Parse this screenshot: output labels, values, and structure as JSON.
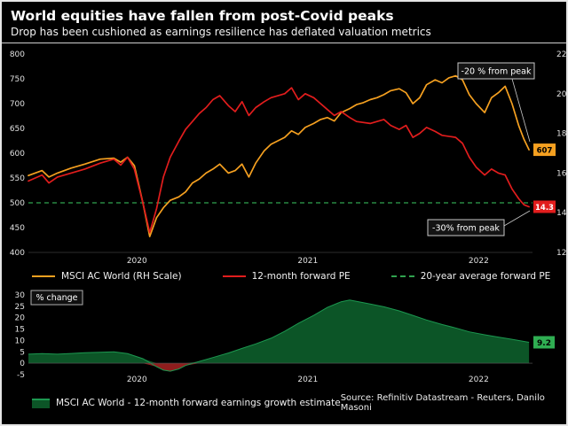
{
  "header": {
    "title": "World equities have fallen from post-Covid peaks",
    "subtitle": "Drop has been cushioned as earnings resilience has deflated valuation metrics"
  },
  "footer": {
    "source": "Source: Refinitiv Datastream - Reuters, Danilo Masoni"
  },
  "colors": {
    "background": "#000000",
    "msci_orange": "#f5a020",
    "pe_red": "#e11d1d",
    "avg_green": "#30a24f",
    "area_green": "#0c5527",
    "area_green_edge": "#1c9850",
    "negative_red": "#8f1d1d",
    "tick_text": "#e0e0e0"
  },
  "chart_data": [
    {
      "type": "line",
      "title": "World equities have fallen from post-Covid peaks",
      "x_range": [
        2019.5,
        2022.45
      ],
      "x_ticks": [
        {
          "value": 2020,
          "label": "2020"
        },
        {
          "value": 2021,
          "label": "2021"
        },
        {
          "value": 2022,
          "label": "2022"
        }
      ],
      "left_axis": {
        "range": [
          400,
          800
        ],
        "ticks": [
          800,
          750,
          700,
          650,
          600,
          550,
          500,
          450,
          400
        ]
      },
      "right_axis": {
        "range": [
          12,
          22
        ],
        "ticks": [
          22,
          20,
          18,
          16,
          14,
          12
        ]
      },
      "series": [
        {
          "name": "MSCI AC World (RH Scale)",
          "axis": "left",
          "color": "#f5a020",
          "style": "solid",
          "points": [
            [
              2019.5,
              555
            ],
            [
              2019.58,
              565
            ],
            [
              2019.62,
              552
            ],
            [
              2019.67,
              560
            ],
            [
              2019.75,
              570
            ],
            [
              2019.83,
              578
            ],
            [
              2019.92,
              588
            ],
            [
              2020.0,
              590
            ],
            [
              2020.04,
              582
            ],
            [
              2020.08,
              592
            ],
            [
              2020.12,
              575
            ],
            [
              2020.17,
              500
            ],
            [
              2020.21,
              432
            ],
            [
              2020.25,
              470
            ],
            [
              2020.29,
              490
            ],
            [
              2020.33,
              505
            ],
            [
              2020.38,
              512
            ],
            [
              2020.42,
              522
            ],
            [
              2020.46,
              540
            ],
            [
              2020.5,
              548
            ],
            [
              2020.54,
              560
            ],
            [
              2020.58,
              568
            ],
            [
              2020.62,
              578
            ],
            [
              2020.67,
              560
            ],
            [
              2020.71,
              565
            ],
            [
              2020.75,
              578
            ],
            [
              2020.79,
              552
            ],
            [
              2020.83,
              580
            ],
            [
              2020.88,
              605
            ],
            [
              2020.92,
              618
            ],
            [
              2020.96,
              625
            ],
            [
              2021.0,
              632
            ],
            [
              2021.04,
              645
            ],
            [
              2021.08,
              638
            ],
            [
              2021.12,
              652
            ],
            [
              2021.17,
              660
            ],
            [
              2021.21,
              668
            ],
            [
              2021.25,
              672
            ],
            [
              2021.29,
              665
            ],
            [
              2021.33,
              682
            ],
            [
              2021.38,
              690
            ],
            [
              2021.42,
              698
            ],
            [
              2021.46,
              702
            ],
            [
              2021.5,
              708
            ],
            [
              2021.54,
              712
            ],
            [
              2021.58,
              718
            ],
            [
              2021.62,
              726
            ],
            [
              2021.67,
              730
            ],
            [
              2021.71,
              722
            ],
            [
              2021.75,
              700
            ],
            [
              2021.79,
              712
            ],
            [
              2021.83,
              738
            ],
            [
              2021.88,
              748
            ],
            [
              2021.92,
              742
            ],
            [
              2021.96,
              752
            ],
            [
              2022.0,
              756
            ],
            [
              2022.04,
              748
            ],
            [
              2022.08,
              718
            ],
            [
              2022.12,
              700
            ],
            [
              2022.17,
              682
            ],
            [
              2022.21,
              712
            ],
            [
              2022.25,
              722
            ],
            [
              2022.29,
              735
            ],
            [
              2022.33,
              700
            ],
            [
              2022.37,
              655
            ],
            [
              2022.4,
              628
            ],
            [
              2022.43,
              607
            ]
          ]
        },
        {
          "name": "12-month forward PE",
          "axis": "right",
          "color": "#e11d1d",
          "style": "solid",
          "points": [
            [
              2019.5,
              15.6
            ],
            [
              2019.58,
              15.9
            ],
            [
              2019.62,
              15.5
            ],
            [
              2019.67,
              15.8
            ],
            [
              2019.75,
              16.0
            ],
            [
              2019.83,
              16.2
            ],
            [
              2019.92,
              16.5
            ],
            [
              2020.0,
              16.7
            ],
            [
              2020.04,
              16.4
            ],
            [
              2020.08,
              16.8
            ],
            [
              2020.12,
              16.2
            ],
            [
              2020.17,
              14.5
            ],
            [
              2020.21,
              13.0
            ],
            [
              2020.25,
              14.2
            ],
            [
              2020.29,
              15.8
            ],
            [
              2020.33,
              16.8
            ],
            [
              2020.38,
              17.6
            ],
            [
              2020.42,
              18.2
            ],
            [
              2020.46,
              18.6
            ],
            [
              2020.5,
              19.0
            ],
            [
              2020.54,
              19.3
            ],
            [
              2020.58,
              19.7
            ],
            [
              2020.62,
              19.9
            ],
            [
              2020.67,
              19.4
            ],
            [
              2020.71,
              19.1
            ],
            [
              2020.75,
              19.6
            ],
            [
              2020.79,
              18.9
            ],
            [
              2020.83,
              19.3
            ],
            [
              2020.88,
              19.6
            ],
            [
              2020.92,
              19.8
            ],
            [
              2021.0,
              20.0
            ],
            [
              2021.04,
              20.3
            ],
            [
              2021.08,
              19.7
            ],
            [
              2021.12,
              20.0
            ],
            [
              2021.17,
              19.8
            ],
            [
              2021.21,
              19.5
            ],
            [
              2021.25,
              19.2
            ],
            [
              2021.29,
              18.9
            ],
            [
              2021.33,
              19.1
            ],
            [
              2021.38,
              18.8
            ],
            [
              2021.42,
              18.6
            ],
            [
              2021.5,
              18.5
            ],
            [
              2021.58,
              18.7
            ],
            [
              2021.62,
              18.4
            ],
            [
              2021.67,
              18.2
            ],
            [
              2021.71,
              18.4
            ],
            [
              2021.75,
              17.8
            ],
            [
              2021.79,
              18.0
            ],
            [
              2021.83,
              18.3
            ],
            [
              2021.88,
              18.1
            ],
            [
              2021.92,
              17.9
            ],
            [
              2022.0,
              17.8
            ],
            [
              2022.04,
              17.5
            ],
            [
              2022.08,
              16.8
            ],
            [
              2022.12,
              16.3
            ],
            [
              2022.17,
              15.9
            ],
            [
              2022.21,
              16.2
            ],
            [
              2022.25,
              16.0
            ],
            [
              2022.29,
              15.9
            ],
            [
              2022.33,
              15.2
            ],
            [
              2022.37,
              14.7
            ],
            [
              2022.4,
              14.4
            ],
            [
              2022.43,
              14.3
            ]
          ]
        }
      ],
      "average_line": {
        "name": "20-year average forward PE",
        "axis": "right",
        "value": 14.5,
        "color": "#30a24f",
        "style": "dashed"
      },
      "end_labels": [
        {
          "text": "607",
          "axis": "left",
          "value": 607,
          "bg": "#f5a020",
          "fg": "#000000"
        },
        {
          "text": "14.3",
          "axis": "right",
          "value": 14.3,
          "bg": "#e11d1d",
          "fg": "#ffffff"
        }
      ],
      "annotations": [
        {
          "text": "-20 % from peak"
        },
        {
          "text": "-30% from peak"
        }
      ],
      "legend": [
        {
          "label": "MSCI AC World (RH Scale)",
          "color": "#f5a020",
          "style": "line"
        },
        {
          "label": "12-month forward PE",
          "color": "#e11d1d",
          "style": "line"
        },
        {
          "label": "20-year average forward PE",
          "color": "#30a24f",
          "style": "dashed"
        }
      ]
    },
    {
      "type": "area",
      "ylabel_box": "% change",
      "x_range": [
        2019.5,
        2022.45
      ],
      "x_ticks": [
        {
          "value": 2020,
          "label": "2020"
        },
        {
          "value": 2021,
          "label": "2021"
        },
        {
          "value": 2022,
          "label": "2022"
        }
      ],
      "y_axis": {
        "range": [
          -5,
          30
        ],
        "ticks": [
          30,
          25,
          20,
          15,
          10,
          5,
          0,
          -5
        ]
      },
      "series": [
        {
          "name": "MSCI AC World - 12-month forward earnings growth estimate",
          "color": "#0c5527",
          "points": [
            [
              2019.5,
              4.0
            ],
            [
              2019.58,
              4.2
            ],
            [
              2019.67,
              4.0
            ],
            [
              2019.75,
              4.3
            ],
            [
              2019.83,
              4.6
            ],
            [
              2019.92,
              4.8
            ],
            [
              2020.0,
              5.0
            ],
            [
              2020.08,
              4.2
            ],
            [
              2020.17,
              2.0
            ],
            [
              2020.25,
              -1.5
            ],
            [
              2020.29,
              -3.0
            ],
            [
              2020.33,
              -3.5
            ],
            [
              2020.38,
              -2.5
            ],
            [
              2020.42,
              -1.0
            ],
            [
              2020.5,
              0.8
            ],
            [
              2020.58,
              2.5
            ],
            [
              2020.67,
              4.5
            ],
            [
              2020.75,
              6.5
            ],
            [
              2020.83,
              8.5
            ],
            [
              2020.92,
              11.0
            ],
            [
              2021.0,
              14.0
            ],
            [
              2021.08,
              17.5
            ],
            [
              2021.17,
              21.0
            ],
            [
              2021.25,
              24.5
            ],
            [
              2021.33,
              27.0
            ],
            [
              2021.38,
              27.8
            ],
            [
              2021.42,
              27.2
            ],
            [
              2021.5,
              26.0
            ],
            [
              2021.58,
              24.8
            ],
            [
              2021.67,
              23.0
            ],
            [
              2021.75,
              21.0
            ],
            [
              2021.83,
              19.0
            ],
            [
              2021.92,
              17.0
            ],
            [
              2022.0,
              15.5
            ],
            [
              2022.08,
              13.8
            ],
            [
              2022.17,
              12.5
            ],
            [
              2022.25,
              11.5
            ],
            [
              2022.33,
              10.5
            ],
            [
              2022.43,
              9.2
            ]
          ]
        }
      ],
      "end_label": {
        "text": "9.2",
        "value": 9.2,
        "bg": "#2fae52",
        "fg": "#000000"
      },
      "legend": [
        {
          "label": "MSCI AC World - 12-month forward earnings growth estimate",
          "color": "#0c5527",
          "edge": "#1c9850",
          "style": "area"
        }
      ]
    }
  ]
}
